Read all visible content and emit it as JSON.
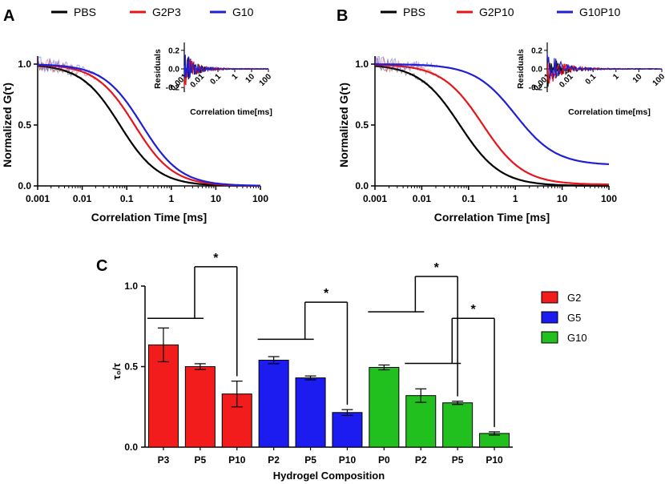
{
  "chart_data": [
    {
      "panel": "A",
      "type": "line",
      "xscale": "log",
      "xlabel": "Correlation Time [ms]",
      "ylabel": "Normalized G(τ)",
      "xlim": [
        0.001,
        100
      ],
      "ylim": [
        0.0,
        1.0
      ],
      "xticks": [
        "0.001",
        "0.01",
        "0.1",
        "1",
        "10",
        "100"
      ],
      "yticks": [
        "0.0",
        "0.5",
        "1.0"
      ],
      "series": [
        {
          "name": "PBS",
          "color": "#000000",
          "tau_ms": 0.07,
          "offset": 0.0
        },
        {
          "name": "G2P3",
          "color": "#e8141c",
          "tau_ms": 0.15,
          "offset": 0.0
        },
        {
          "name": "G10",
          "color": "#1f1fd6",
          "tau_ms": 0.22,
          "offset": 0.0
        }
      ],
      "inset": {
        "ylabel": "Residuals",
        "xlabel": "Correlation time[ms]",
        "yticks": [
          "0.2",
          "0.0",
          "-0.2"
        ],
        "xticks": [
          "0.001",
          "0.01",
          "0.1",
          "1",
          "10",
          "100"
        ],
        "ylim": [
          -0.25,
          0.25
        ]
      }
    },
    {
      "panel": "B",
      "type": "line",
      "xscale": "log",
      "xlabel": "Correlation Time [ms]",
      "ylabel": "Normalized G(τ)",
      "xlim": [
        0.001,
        100
      ],
      "ylim": [
        0.0,
        1.0
      ],
      "xticks": [
        "0.001",
        "0.01",
        "0.1",
        "1",
        "10",
        "100"
      ],
      "yticks": [
        "0.0",
        "0.5",
        "1.0"
      ],
      "series": [
        {
          "name": "PBS",
          "color": "#000000",
          "tau_ms": 0.065,
          "offset": 0.0
        },
        {
          "name": "G2P10",
          "color": "#e8141c",
          "tau_ms": 0.2,
          "offset": 0.01
        },
        {
          "name": "G10P10",
          "color": "#1f1fd6",
          "tau_ms": 1.0,
          "offset": 0.17
        }
      ],
      "inset": {
        "ylabel": "Residuals",
        "xlabel": "Correlation time[ms]",
        "yticks": [
          "0.2",
          "0.0",
          "-0.2"
        ],
        "xticks": [
          "0.001",
          "0.01",
          "0.1",
          "1",
          "10",
          "100"
        ],
        "ylim": [
          -0.25,
          0.25
        ]
      }
    },
    {
      "panel": "C",
      "type": "bar",
      "xlabel": "Hydrogel Composition",
      "ylabel": "τ₀/τ",
      "ylim": [
        0.0,
        1.0
      ],
      "yticks": [
        "0.0",
        "0.5",
        "1.0"
      ],
      "categories": [
        "P3",
        "P5",
        "P10",
        "P2",
        "P5",
        "P10",
        "P0",
        "P2",
        "P5",
        "P10"
      ],
      "groups": [
        "G2",
        "G2",
        "G2",
        "G5",
        "G5",
        "G5",
        "G10",
        "G10",
        "G10",
        "G10"
      ],
      "values": [
        0.635,
        0.5,
        0.33,
        0.54,
        0.43,
        0.215,
        0.495,
        0.32,
        0.275,
        0.085
      ],
      "errors": [
        0.105,
        0.018,
        0.08,
        0.022,
        0.012,
        0.018,
        0.015,
        0.042,
        0.01,
        0.01
      ],
      "legend": [
        {
          "name": "G2",
          "color": "#f21c1c"
        },
        {
          "name": "G5",
          "color": "#1c1cf0"
        },
        {
          "name": "G10",
          "color": "#22c01e"
        }
      ],
      "significance": [
        {
          "from": [
            0
          ],
          "to": 2,
          "label": "*"
        },
        {
          "from": [
            3
          ],
          "to": 5,
          "label": "*"
        },
        {
          "from": [
            6
          ],
          "to": 8,
          "label": "*"
        },
        {
          "from": [
            7
          ],
          "to": 9,
          "label": "*"
        }
      ]
    }
  ],
  "panel_labels": [
    "A",
    "B",
    "C"
  ]
}
